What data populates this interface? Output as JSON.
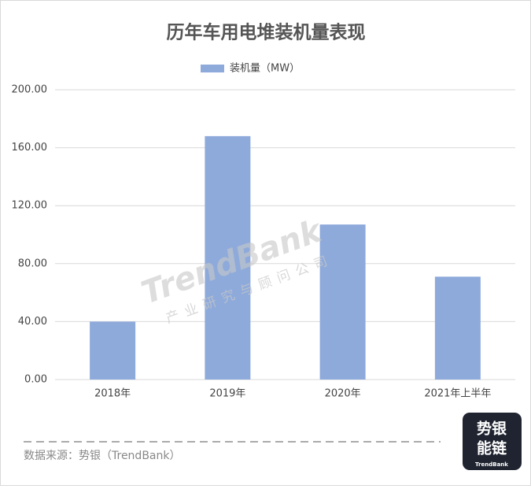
{
  "chart_data": {
    "type": "bar",
    "title": "历年车用电堆装机量表现",
    "categories": [
      "2018年",
      "2019年",
      "2020年",
      "2021年上半年"
    ],
    "series": [
      {
        "name": "装机量（MW）",
        "color": "#8eaadb",
        "values": [
          40,
          168,
          107,
          71
        ]
      }
    ],
    "ylim": [
      0,
      200
    ],
    "yticks": [
      {
        "value": 0,
        "label": "0.00"
      },
      {
        "value": 40,
        "label": "40.00"
      },
      {
        "value": 80,
        "label": "80.00"
      },
      {
        "value": 120,
        "label": "120.00"
      },
      {
        "value": 160,
        "label": "160.00"
      },
      {
        "value": 200,
        "label": "200.00"
      }
    ],
    "grid": true,
    "legend": "top",
    "watermark": {
      "brand": "TrendBank",
      "subtitle": "产业研究与顾问公司"
    },
    "source": "数据来源：势银（TrendBank）",
    "logo": {
      "line1": "势银",
      "line2": "能链",
      "brand": "TrendBank"
    }
  }
}
